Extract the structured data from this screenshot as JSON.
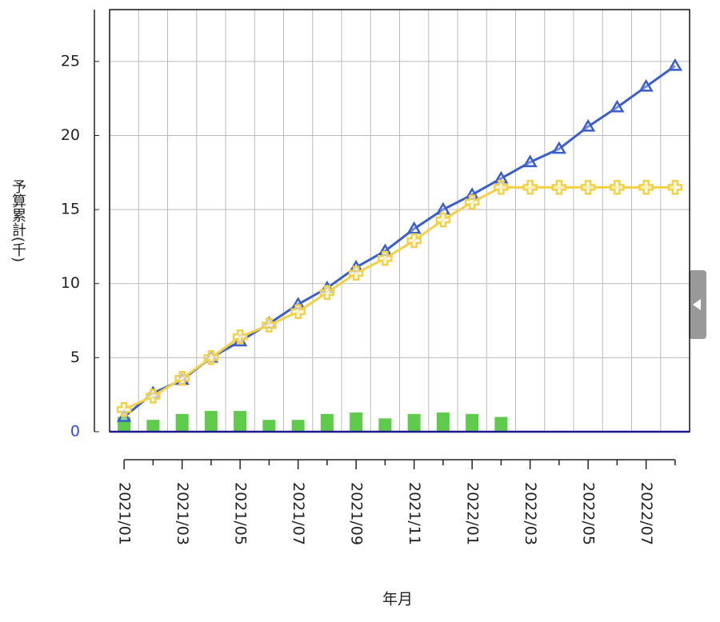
{
  "chart_data": {
    "type": "line",
    "y_label": "予算累計(千)",
    "x_label": "年月",
    "categories": [
      "2021/01",
      null,
      "2021/03",
      null,
      "2021/05",
      null,
      "2021/07",
      null,
      "2021/09",
      null,
      "2021/11",
      null,
      "2022/01",
      null,
      "2022/03",
      null,
      "2022/05",
      null,
      "2022/07",
      null
    ],
    "series": [
      {
        "type": "bar",
        "color": "#5ecc4a",
        "values": [
          1.0,
          0.8,
          1.2,
          1.4,
          1.4,
          0.8,
          0.8,
          1.2,
          1.3,
          0.9,
          1.2,
          1.3,
          1.2,
          1.0,
          null,
          null,
          null,
          null,
          null,
          null
        ]
      },
      {
        "type": "line",
        "marker": "triangle",
        "color": "#3a5fcd",
        "values": [
          1.0,
          2.6,
          3.5,
          5.0,
          6.1,
          7.3,
          8.6,
          9.7,
          11.1,
          12.2,
          13.7,
          15.0,
          16.0,
          17.1,
          18.2,
          19.1,
          20.6,
          21.9,
          23.3,
          24.7
        ]
      },
      {
        "type": "line",
        "marker": "plus",
        "color": "#f5d142",
        "values": [
          1.5,
          2.4,
          3.6,
          5.0,
          6.4,
          7.2,
          8.1,
          9.4,
          10.7,
          11.7,
          12.9,
          14.3,
          15.5,
          16.5,
          16.5,
          16.5,
          16.5,
          16.5,
          16.5,
          16.5
        ]
      }
    ],
    "ylim": [
      0,
      28.5
    ],
    "yticks": [
      0,
      5,
      10,
      15,
      20,
      25
    ],
    "grid": true
  }
}
